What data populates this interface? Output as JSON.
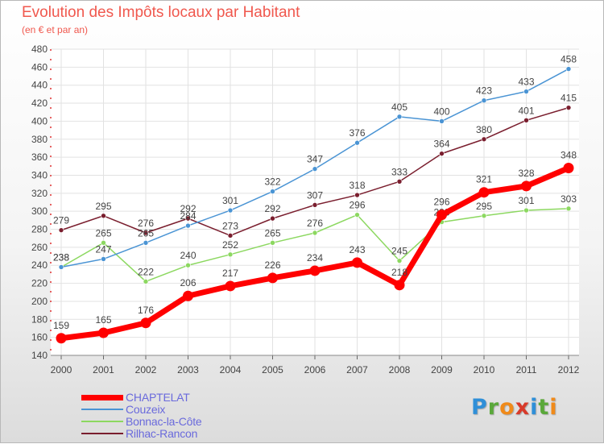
{
  "header": {
    "title": "Evolution des Impôts locaux par Habitant",
    "subtitle": "(en € et par an)"
  },
  "logo": {
    "letters": [
      "P",
      "r",
      "o",
      "x",
      "i",
      "t",
      "i"
    ],
    "colors": [
      "#2f8fd8",
      "#5aa83a",
      "#f08a1a",
      "#d83a2a",
      "#2f8fd8",
      "#5aa83a",
      "#f08a1a"
    ]
  },
  "chart_data": {
    "type": "line",
    "title": "Evolution des Impôts locaux par Habitant",
    "subtitle": "(en € et par an)",
    "xlabel": "",
    "ylabel": "",
    "x": [
      2000,
      2001,
      2002,
      2003,
      2004,
      2005,
      2006,
      2007,
      2008,
      2009,
      2010,
      2011,
      2012
    ],
    "ylim": [
      140,
      480
    ],
    "ytick_step": 20,
    "grid": true,
    "legend_position": "bottom-left",
    "series": [
      {
        "name": "Rilhac-Rancon",
        "color": "#7a1e2e",
        "values": [
          279,
          295,
          276,
          292,
          273,
          292,
          307,
          318,
          333,
          364,
          380,
          401,
          415
        ]
      },
      {
        "name": "Bonnac-la-Côte",
        "color": "#8cd860",
        "values": [
          238,
          265,
          222,
          240,
          252,
          265,
          276,
          296,
          245,
          288,
          295,
          301,
          303
        ]
      },
      {
        "name": "Couzeix",
        "color": "#4a94d4",
        "values": [
          238,
          247,
          265,
          284,
          301,
          322,
          347,
          376,
          405,
          400,
          423,
          433,
          458
        ]
      },
      {
        "name": "CHAPTELAT",
        "color": "#ff0000",
        "values": [
          159,
          165,
          176,
          206,
          217,
          226,
          234,
          243,
          218,
          296,
          321,
          328,
          348
        ]
      }
    ],
    "legend_order": [
      "CHAPTELAT",
      "Couzeix",
      "Bonnac-la-Côte",
      "Rilhac-Rancon"
    ]
  }
}
